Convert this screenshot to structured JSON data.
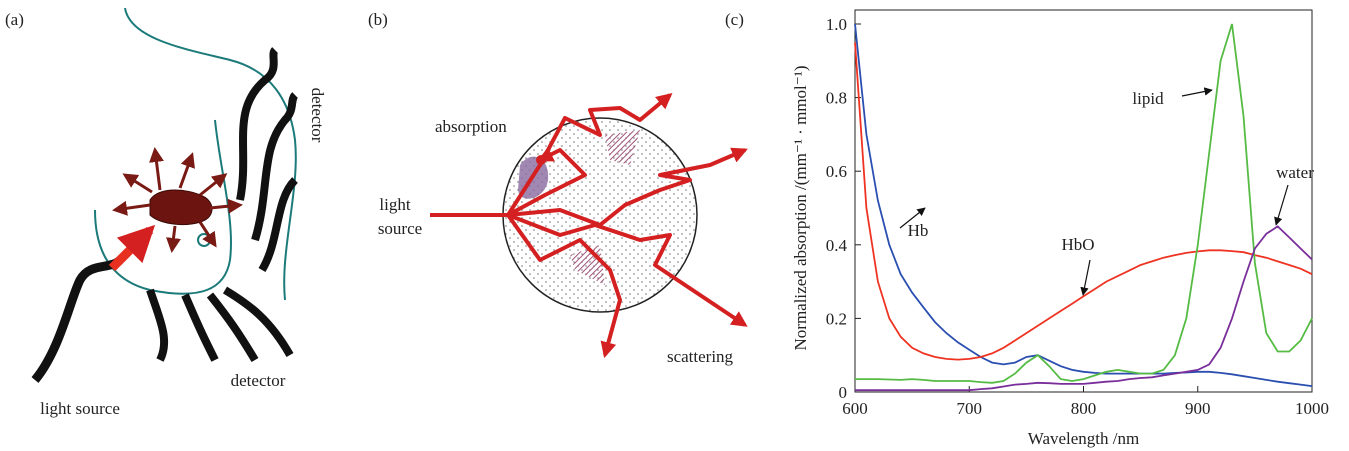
{
  "panels": [
    {
      "label": "(a)",
      "texts": [
        "detector",
        "detector",
        "light source"
      ]
    },
    {
      "label": "(b)",
      "texts": [
        "absorption",
        "light",
        "source",
        "scattering"
      ]
    }
  ],
  "chart_data": {
    "type": "line",
    "label": "(c)",
    "xlabel": "Wavelength /nm",
    "ylabel": "Normalized absorption /(mm⁻¹ · mmol⁻¹)",
    "x": [
      600,
      610,
      620,
      630,
      640,
      650,
      660,
      670,
      680,
      690,
      700,
      710,
      720,
      730,
      740,
      750,
      760,
      770,
      780,
      790,
      800,
      810,
      820,
      830,
      840,
      850,
      860,
      870,
      880,
      890,
      900,
      910,
      920,
      930,
      940,
      950,
      960,
      970,
      980,
      990,
      1000
    ],
    "xlim": [
      600,
      1000
    ],
    "xticks": [
      600,
      700,
      800,
      900,
      1000
    ],
    "ylim": [
      0,
      1
    ],
    "yticks": [
      0,
      0.2,
      0.4,
      0.6,
      0.8,
      {
        "value": 1,
        "label": "1.0"
      }
    ],
    "series": [
      {
        "name": "Hb",
        "color": "#2b4fb0",
        "values": [
          1.0,
          0.7,
          0.52,
          0.4,
          0.32,
          0.27,
          0.23,
          0.19,
          0.16,
          0.135,
          0.115,
          0.095,
          0.08,
          0.075,
          0.08,
          0.095,
          0.1,
          0.085,
          0.07,
          0.06,
          0.055,
          0.052,
          0.05,
          0.05,
          0.05,
          0.05,
          0.05,
          0.05,
          0.052,
          0.053,
          0.055,
          0.055,
          0.052,
          0.048,
          0.043,
          0.038,
          0.033,
          0.028,
          0.024,
          0.02,
          0.016
        ]
      },
      {
        "name": "HbO",
        "color": "#ee3322",
        "values": [
          0.95,
          0.5,
          0.3,
          0.2,
          0.15,
          0.12,
          0.105,
          0.095,
          0.09,
          0.088,
          0.09,
          0.095,
          0.105,
          0.12,
          0.14,
          0.16,
          0.18,
          0.2,
          0.22,
          0.24,
          0.26,
          0.28,
          0.3,
          0.315,
          0.33,
          0.345,
          0.355,
          0.365,
          0.372,
          0.378,
          0.382,
          0.385,
          0.385,
          0.383,
          0.38,
          0.372,
          0.365,
          0.355,
          0.345,
          0.335,
          0.32
        ]
      },
      {
        "name": "lipid",
        "color": "#55bb44",
        "values": [
          0.035,
          0.035,
          0.035,
          0.034,
          0.033,
          0.035,
          0.033,
          0.03,
          0.03,
          0.03,
          0.03,
          0.027,
          0.025,
          0.03,
          0.05,
          0.08,
          0.1,
          0.07,
          0.035,
          0.03,
          0.035,
          0.045,
          0.055,
          0.06,
          0.055,
          0.05,
          0.05,
          0.06,
          0.1,
          0.2,
          0.4,
          0.65,
          0.9,
          1.0,
          0.75,
          0.35,
          0.16,
          0.11,
          0.11,
          0.14,
          0.2
        ]
      },
      {
        "name": "water",
        "color": "#7a2e9a",
        "values": [
          0.005,
          0.005,
          0.005,
          0.005,
          0.005,
          0.005,
          0.005,
          0.005,
          0.005,
          0.005,
          0.005,
          0.008,
          0.01,
          0.015,
          0.02,
          0.022,
          0.025,
          0.024,
          0.022,
          0.022,
          0.022,
          0.025,
          0.028,
          0.03,
          0.035,
          0.038,
          0.04,
          0.045,
          0.05,
          0.055,
          0.06,
          0.075,
          0.12,
          0.2,
          0.3,
          0.39,
          0.43,
          0.45,
          0.42,
          0.39,
          0.36
        ]
      }
    ]
  }
}
